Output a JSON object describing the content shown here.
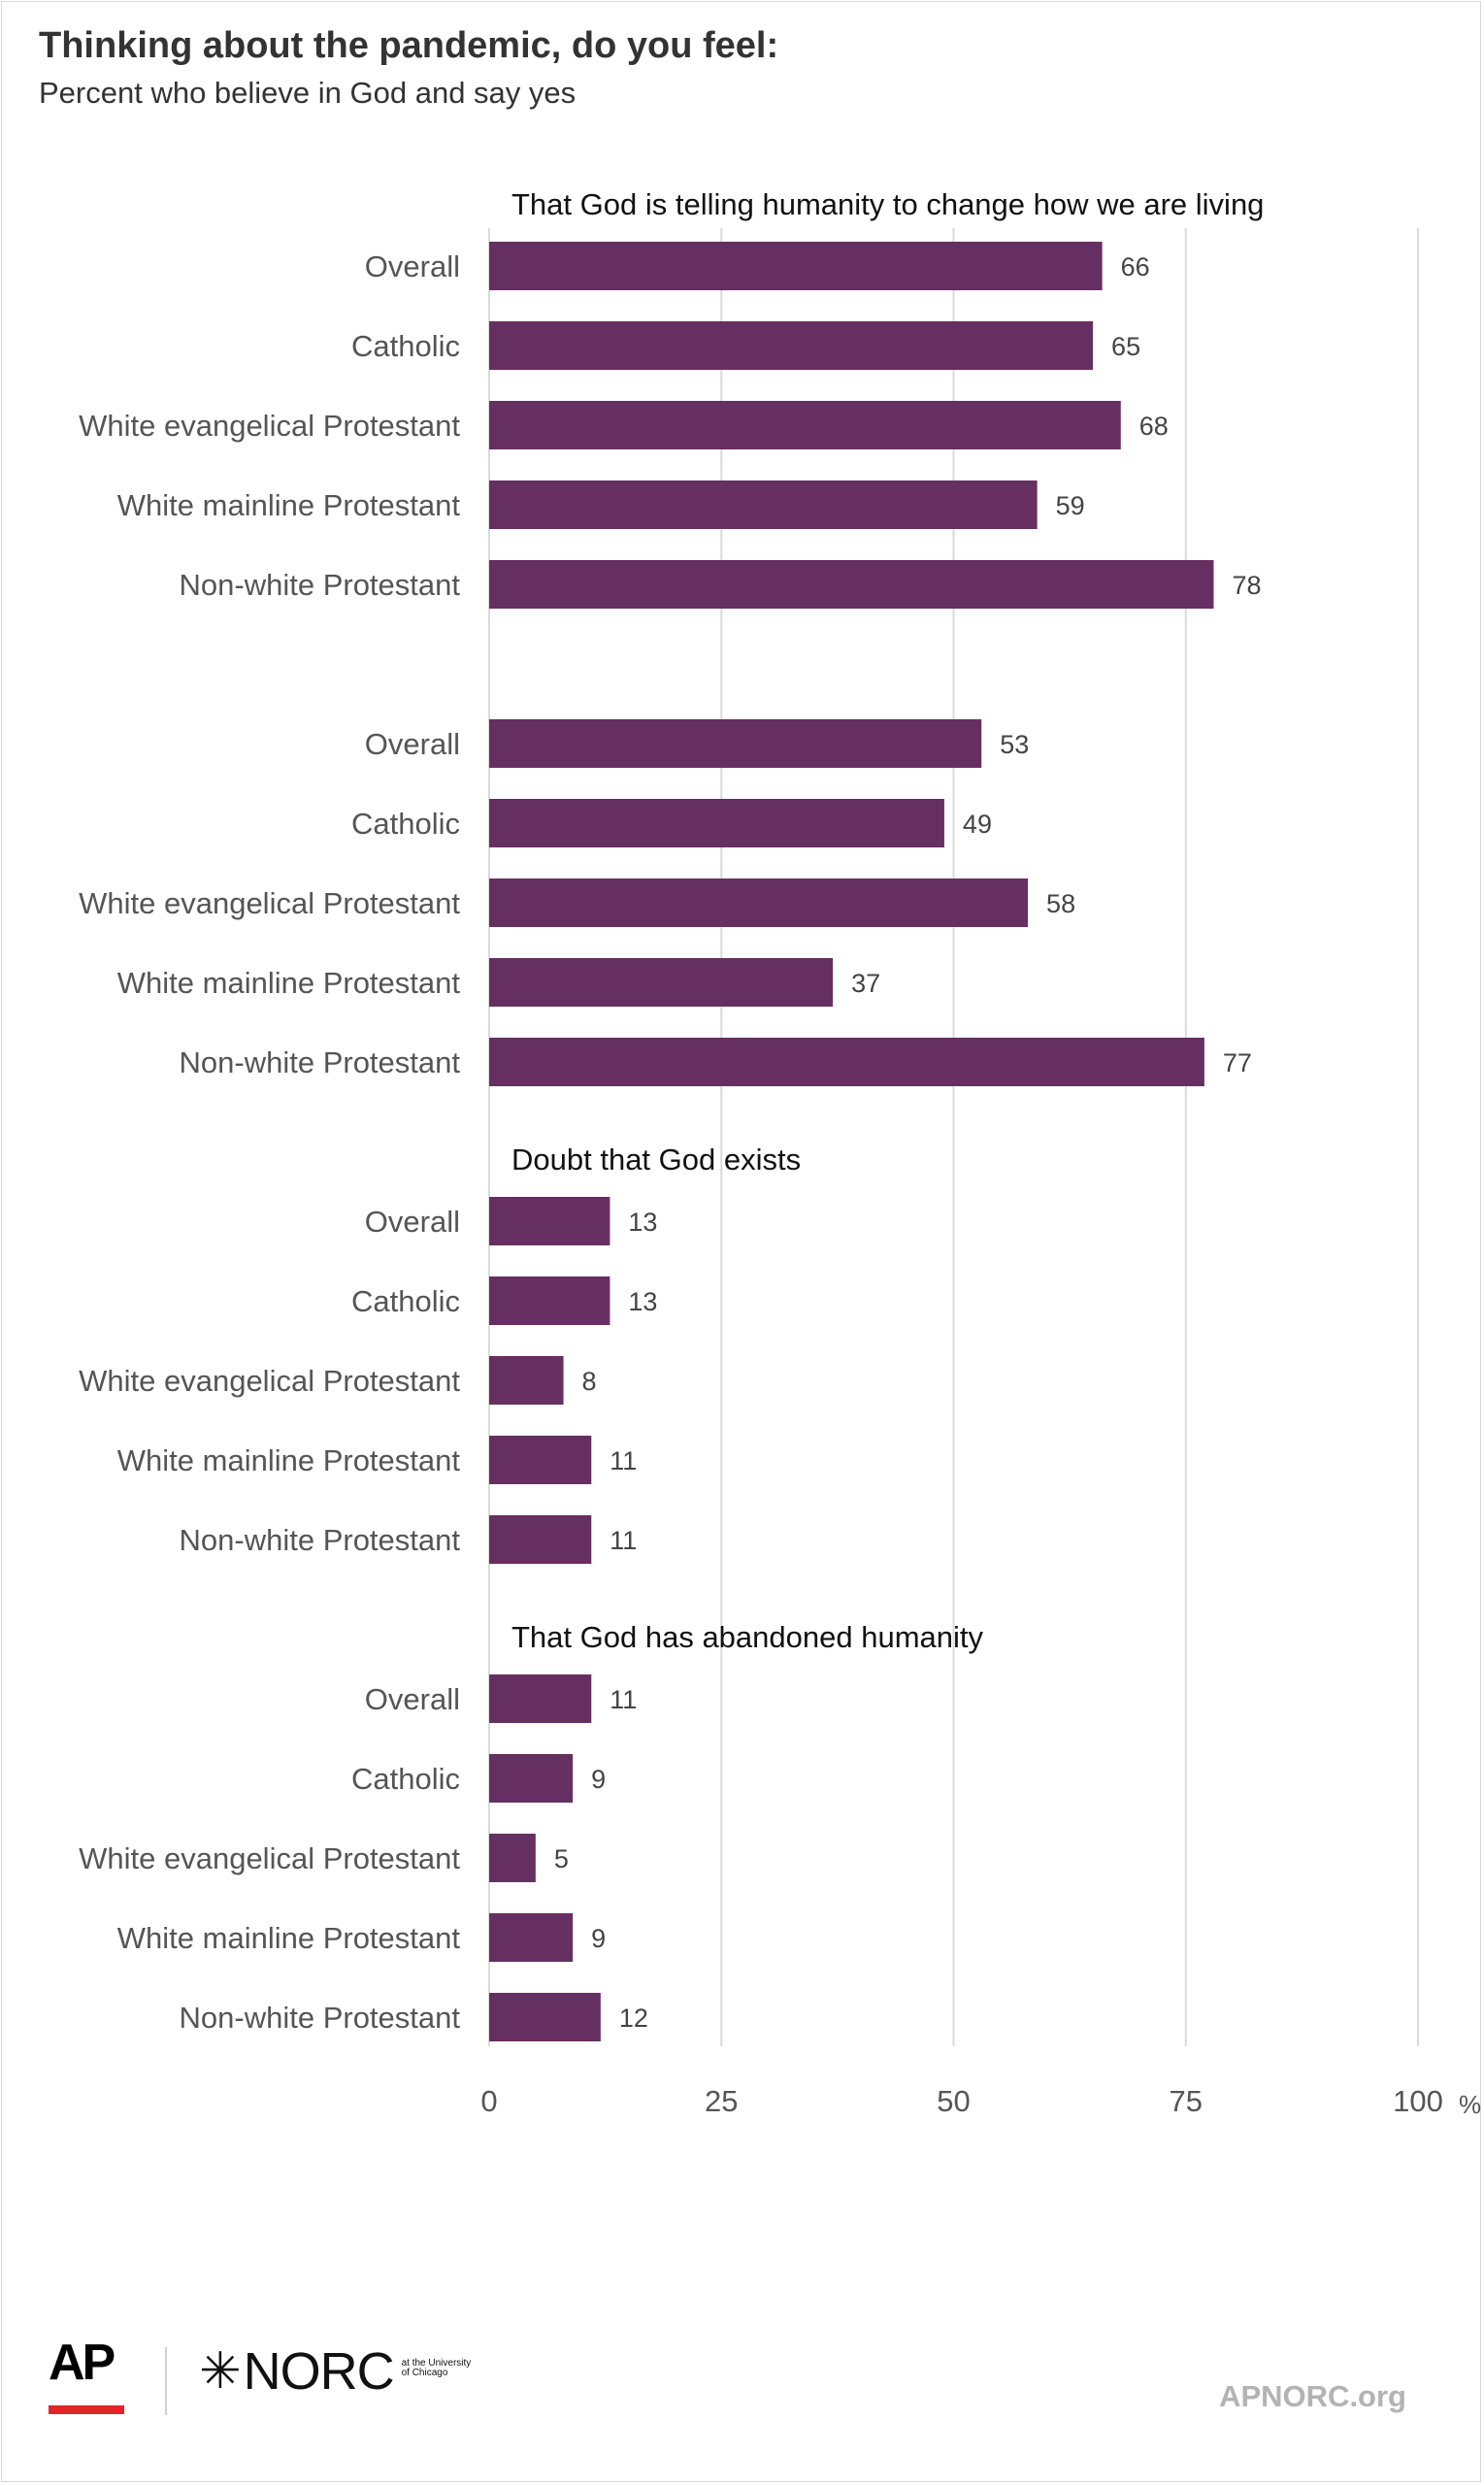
{
  "header": {
    "title": "Thinking about the pandemic, do you feel:",
    "subtitle": "Percent who believe in God and say yes"
  },
  "chart_data": {
    "type": "bar",
    "orientation": "horizontal",
    "bar_color": "#662f62",
    "grid_color": "#dadada",
    "xlim": [
      0,
      100
    ],
    "xticks": [
      "0",
      "25",
      "50",
      "75",
      "100"
    ],
    "x_unit": "%",
    "grid": true,
    "groups": [
      {
        "heading": "That God is telling humanity to change how we are living",
        "categories": [
          "Overall",
          "Catholic",
          "White evangelical Protestant",
          "White mainline Protestant",
          "Non-white Protestant"
        ],
        "values": [
          66,
          65,
          68,
          59,
          78
        ]
      },
      {
        "heading": "",
        "categories": [
          "Overall",
          "Catholic",
          "White evangelical Protestant",
          "White mainline Protestant",
          "Non-white Protestant"
        ],
        "values": [
          53,
          49,
          58,
          37,
          77
        ]
      },
      {
        "heading": "Doubt that God exists",
        "categories": [
          "Overall",
          "Catholic",
          "White evangelical Protestant",
          "White mainline Protestant",
          "Non-white Protestant"
        ],
        "values": [
          13,
          13,
          8,
          11,
          11
        ]
      },
      {
        "heading": "That God has abandoned humanity",
        "categories": [
          "Overall",
          "Catholic",
          "White evangelical Protestant",
          "White mainline Protestant",
          "Non-white Protestant"
        ],
        "values": [
          11,
          9,
          5,
          9,
          12
        ]
      }
    ]
  },
  "footer": {
    "ap_logo": "AP",
    "ap_accent_color": "#e0262a",
    "norc_logo": "NORC",
    "norc_star_icon": "norc-star-icon",
    "norc_small": "at the University of Chicago",
    "url": "APNORC.org"
  }
}
